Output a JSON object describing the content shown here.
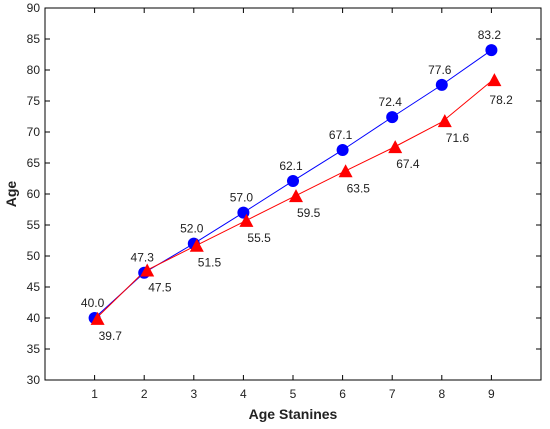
{
  "chart_data": {
    "type": "line",
    "title": "",
    "xlabel": "Age Stanines",
    "ylabel": "Age",
    "x": [
      1,
      2,
      3,
      4,
      5,
      6,
      7,
      8,
      9
    ],
    "xlim": [
      0,
      10
    ],
    "ylim": [
      30,
      90
    ],
    "xticks": [
      1,
      2,
      3,
      4,
      5,
      6,
      7,
      8,
      9
    ],
    "yticks": [
      30,
      35,
      40,
      45,
      50,
      55,
      60,
      65,
      70,
      75,
      80,
      85,
      90
    ],
    "grid": false,
    "legend": "none",
    "series": [
      {
        "marker": "circle",
        "color": "#0000ff",
        "label_position": "above",
        "values": [
          40.0,
          47.3,
          52.0,
          57.0,
          62.1,
          67.1,
          72.4,
          77.6,
          83.2
        ],
        "labels": [
          "40.0",
          "47.3",
          "52.0",
          "57.0",
          "62.1",
          "67.1",
          "72.4",
          "77.6",
          "83.2"
        ]
      },
      {
        "marker": "triangle",
        "color": "#ff0000",
        "label_position": "below-right",
        "values": [
          39.7,
          47.5,
          51.5,
          55.5,
          59.5,
          63.5,
          67.4,
          71.6,
          78.2
        ],
        "labels": [
          "39.7",
          "47.5",
          "51.5",
          "55.5",
          "59.5",
          "63.5",
          "67.4",
          "71.6",
          "78.2"
        ]
      }
    ]
  }
}
